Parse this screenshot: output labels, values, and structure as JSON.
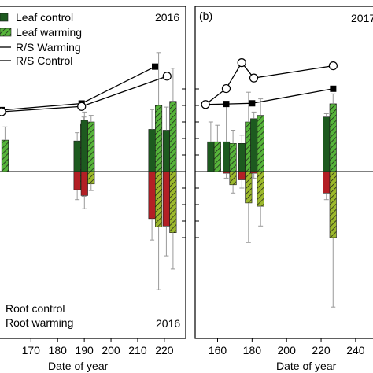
{
  "chart_data": [
    {
      "type": "bar",
      "panel_label": "",
      "year_label_top": "2016",
      "year_label_bottom": "2016",
      "xlabel": "Date of year",
      "x_ticks": [
        170,
        180,
        190,
        200,
        210,
        220
      ],
      "xlim": [
        159,
        228
      ],
      "ylim_rel": [
        -1,
        1
      ],
      "legend": {
        "top": [
          "Leaf control",
          "Leaf warming",
          "R/S Warming",
          "R/S Control"
        ],
        "bottom": [
          "Root control",
          "Root warming"
        ]
      },
      "bars": [
        {
          "x": 188.6,
          "leaf_control": 0.185,
          "leaf_warming": 0.29,
          "root_control": -0.11,
          "root_warming": -0.11,
          "err_leaf_control": 0.05,
          "err_leaf_warming": 0.04,
          "err_root_control": 0.06,
          "err_root_warming": 0.04
        },
        {
          "x": 191.3,
          "leaf_control": 0.31,
          "leaf_warming": 0.3,
          "root_control": -0.145,
          "root_warming": -0.075,
          "err_leaf_control": 0.05,
          "err_leaf_warming": 0.04,
          "err_root_control": 0.08,
          "err_root_warming": 0.04
        },
        {
          "x": 216.6,
          "leaf_control": 0.255,
          "leaf_warming": 0.4,
          "root_control": -0.285,
          "root_warming": -0.335,
          "err_leaf_control": 0.12,
          "err_leaf_warming": 0.32,
          "err_root_control": 0.13,
          "err_root_warming": 0.38
        },
        {
          "x": 222.0,
          "leaf_control": 0.25,
          "leaf_warming": 0.425,
          "root_control": -0.33,
          "root_warming": -0.37,
          "err_leaf_control": 0.14,
          "err_leaf_warming": 0.2,
          "err_root_control": 0.18,
          "err_root_warming": 0.22
        }
      ],
      "partial_bars": [
        {
          "x": 160.3,
          "leaf_warming": 0.19,
          "err_leaf_warming": 0.08
        }
      ],
      "rs_series": [
        {
          "name": "R/S Control",
          "marker": "square",
          "x": [
            159,
            189,
            216.5
          ],
          "y": [
            0.372,
            0.412,
            0.635
          ]
        },
        {
          "name": "R/S Warming",
          "marker": "circle",
          "x": [
            159,
            189,
            221
          ],
          "y": [
            0.362,
            0.394,
            0.577
          ]
        }
      ]
    },
    {
      "type": "bar",
      "panel_label": "(b)",
      "year_label_top": "2017",
      "xlabel": "Date of year",
      "x_ticks": [
        160,
        180,
        200,
        220,
        240
      ],
      "xlim": [
        147,
        251
      ],
      "ylim_rel": [
        -1,
        1
      ],
      "bars": [
        {
          "x": 158.0,
          "leaf_control": 0.18,
          "leaf_warming": 0.18,
          "root_control": 0,
          "root_warming": 0,
          "err_leaf_control": 0.12,
          "err_leaf_warming": 0.1,
          "err_root_control": 0,
          "err_root_warming": 0
        },
        {
          "x": 167.0,
          "leaf_control": 0.18,
          "leaf_warming": 0.17,
          "root_control": -0.01,
          "root_warming": -0.08,
          "err_leaf_control": 0.22,
          "err_leaf_warming": 0.08,
          "err_root_control": 0.03,
          "err_root_warming": 0.05
        },
        {
          "x": 176.0,
          "leaf_control": 0.17,
          "leaf_warming": 0.3,
          "root_control": -0.05,
          "root_warming": -0.19,
          "err_leaf_control": 0.05,
          "err_leaf_warming": 0.18,
          "err_root_control": 0.05,
          "err_root_warming": 0.24
        },
        {
          "x": 183.0,
          "leaf_control": 0.32,
          "leaf_warming": 0.34,
          "root_control": -0.01,
          "root_warming": -0.21,
          "err_leaf_control": 0.04,
          "err_leaf_warming": 0.1,
          "err_root_control": 0.03,
          "err_root_warming": 0.12
        },
        {
          "x": 225.0,
          "leaf_control": 0.33,
          "leaf_warming": 0.41,
          "root_control": -0.13,
          "root_warming": -0.4,
          "err_leaf_control": 0.02,
          "err_leaf_warming": 0.06,
          "err_root_control": 0.04,
          "err_root_warming": 0.42
        }
      ],
      "rs_series": [
        {
          "name": "R/S Control",
          "marker": "square",
          "x": [
            153,
            165,
            180,
            227
          ],
          "y": [
            0.406,
            0.409,
            0.413,
            0.501
          ]
        },
        {
          "name": "R/S Warming",
          "marker": "circle",
          "x": [
            153,
            165,
            174,
            181,
            227
          ],
          "y": [
            0.406,
            0.502,
            0.659,
            0.566,
            0.64
          ]
        }
      ]
    }
  ],
  "colors": {
    "leaf_control": "#1d5a1f",
    "leaf_warming": "#56b43a",
    "root_control": "#b31f25",
    "root_warming": "#9cb92c",
    "hatch_line": "#1a1a1a",
    "axis": "#000000",
    "error_bar": "#999999"
  }
}
